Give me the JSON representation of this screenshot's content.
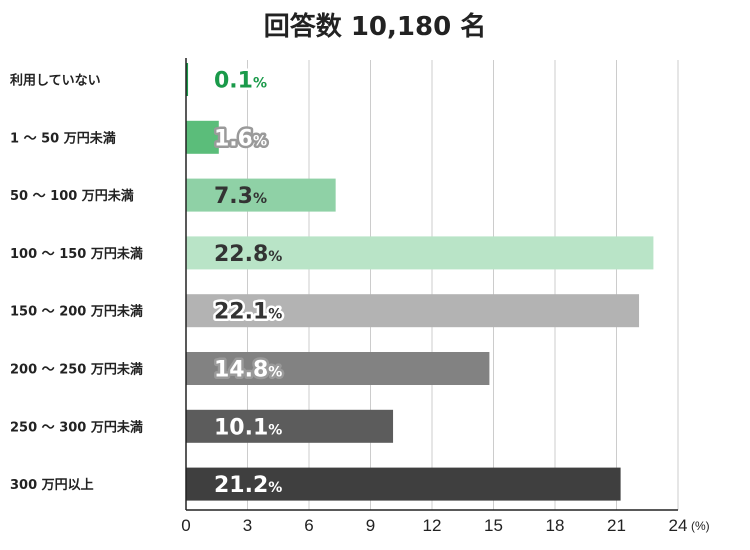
{
  "chart_data": {
    "type": "bar",
    "orientation": "horizontal",
    "title": "回答数 10,180 名",
    "categories": [
      "利用していない",
      "1 ～ 50 万円未満",
      "50 ～ 100 万円未満",
      "100 ～ 150 万円未満",
      "150 ～ 200 万円未満",
      "200 ～ 250 万円未満",
      "250 ～ 300 万円未満",
      "300 万円以上"
    ],
    "values": [
      0.1,
      1.6,
      7.3,
      22.8,
      22.1,
      14.8,
      10.1,
      21.2
    ],
    "value_labels": [
      "0.1",
      "1.6",
      "7.3",
      "22.8",
      "22.1",
      "14.8",
      "10.1",
      "21.2"
    ],
    "value_suffix": "%",
    "xlim": [
      0,
      24
    ],
    "xticks": [
      "0",
      "3",
      "6",
      "9",
      "12",
      "15",
      "18",
      "21",
      "24"
    ],
    "xunit": "(%)",
    "grid": true,
    "colors": [
      "#1a9a4a",
      "#5bbd7a",
      "#8fd1a6",
      "#b9e4c7",
      "#b3b3b3",
      "#828282",
      "#5c5c5c",
      "#3f3f3f"
    ],
    "label_colors": [
      "#1a9a4a",
      "#ffffff",
      "#333333",
      "#333333",
      "#333333",
      "#ffffff",
      "#ffffff",
      "#ffffff"
    ],
    "label_outline": [
      true,
      true,
      false,
      false,
      true,
      true,
      false,
      false
    ]
  }
}
